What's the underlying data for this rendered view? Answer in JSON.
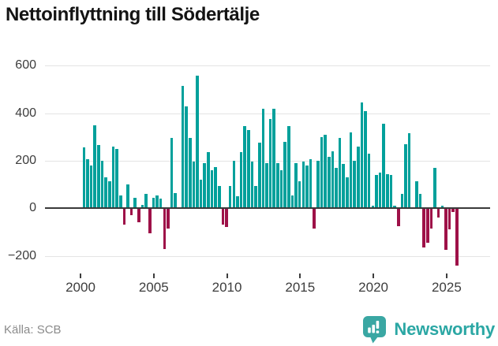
{
  "title": "Nettoinflyttning till Södertälje",
  "source": "Källa: SCB",
  "brand": {
    "name": "Newsworthy",
    "icon": "newsworthy-badge-icon"
  },
  "colors": {
    "positive": "#00a09b",
    "negative": "#9e1148",
    "grid": "#e4e4e4",
    "zero_line": "#3a3a3a",
    "axis_text": "#3d3d3d",
    "title_text": "#141414",
    "source_text": "#8b8b8b",
    "brand_teal": "#2ba7a4"
  },
  "chart_data": {
    "type": "bar",
    "title": "Nettoinflyttning till Södertälje",
    "frequency": "quarterly",
    "start_year": 2000,
    "start_quarter": 1,
    "end_year": 2025,
    "end_quarter": 3,
    "values": [
      255,
      205,
      180,
      350,
      265,
      200,
      130,
      115,
      260,
      250,
      55,
      -70,
      100,
      -30,
      45,
      -60,
      15,
      60,
      -105,
      45,
      55,
      40,
      -170,
      -85,
      295,
      65,
      0,
      515,
      430,
      295,
      195,
      557,
      120,
      190,
      235,
      160,
      175,
      95,
      -70,
      -80,
      95,
      200,
      50,
      235,
      345,
      330,
      195,
      95,
      275,
      420,
      190,
      375,
      420,
      190,
      160,
      280,
      345,
      55,
      190,
      115,
      195,
      180,
      205,
      -85,
      200,
      300,
      310,
      215,
      240,
      170,
      295,
      185,
      130,
      320,
      200,
      260,
      445,
      410,
      230,
      10,
      140,
      150,
      355,
      145,
      140,
      10,
      -75,
      60,
      270,
      315,
      0,
      115,
      60,
      -165,
      -145,
      -85,
      170,
      -40,
      10,
      -175,
      -90,
      -15,
      -240
    ],
    "x_tick_years": [
      2000,
      2005,
      2010,
      2015,
      2020,
      2025
    ],
    "x_tick_labels": [
      "2000",
      "2005",
      "2010",
      "2015",
      "2020",
      "2025"
    ],
    "y_ticks": [
      -200,
      0,
      200,
      400,
      600
    ],
    "y_tick_labels": [
      "−200",
      "0",
      "200",
      "400",
      "600"
    ],
    "ylim": [
      -260,
      620
    ],
    "grid": true,
    "legend": false,
    "xlabel": "",
    "ylabel": ""
  }
}
